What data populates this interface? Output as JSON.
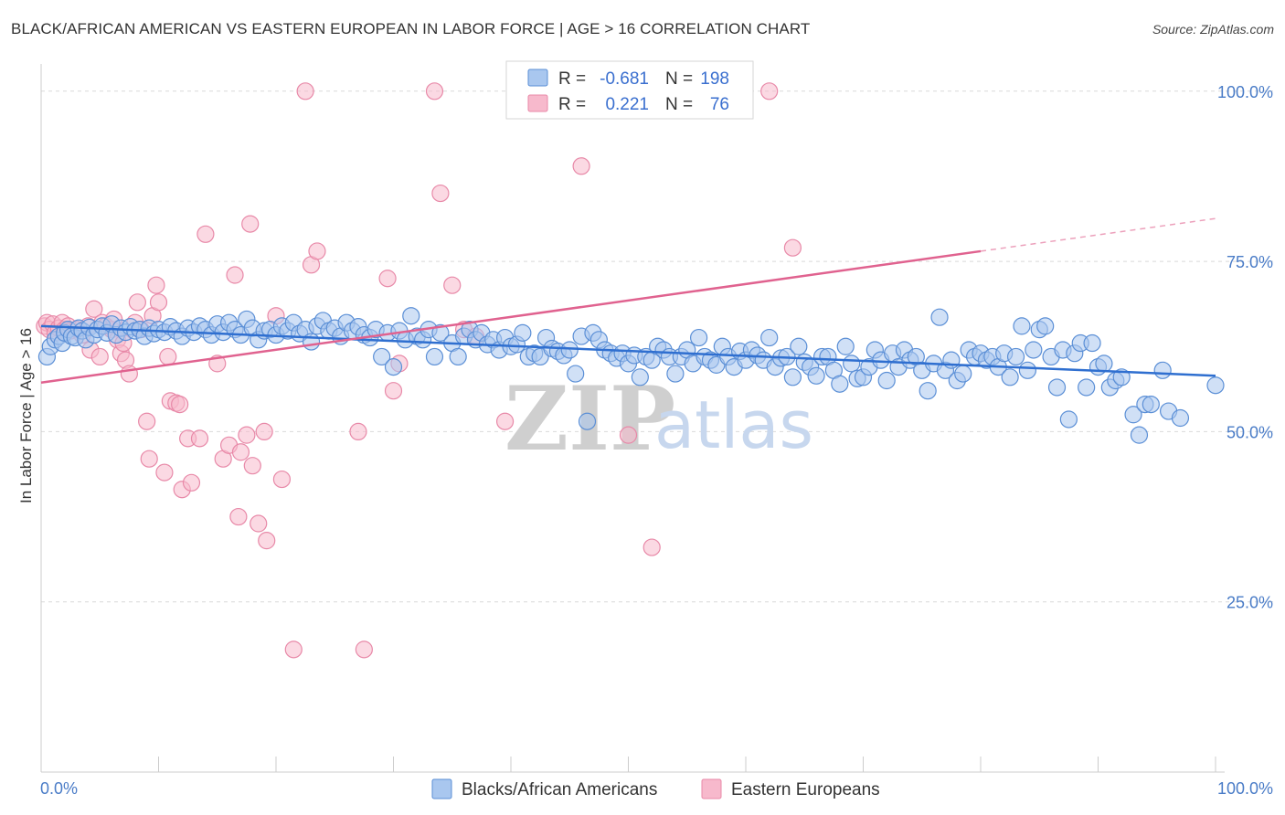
{
  "title": "BLACK/AFRICAN AMERICAN VS EASTERN EUROPEAN IN LABOR FORCE | AGE > 16 CORRELATION CHART",
  "source": "Source: ZipAtlas.com",
  "watermark": {
    "zip": "ZIP",
    "atlas": "atlas"
  },
  "colors": {
    "blue_fill": "#a9c7ef",
    "blue_stroke": "#5b8fd6",
    "blue_line": "#2f6fd0",
    "pink_fill": "#f7b9cc",
    "pink_stroke": "#e889a8",
    "pink_line": "#e0628f",
    "grid": "#d9d9d9",
    "tick_text": "#4a7cc7"
  },
  "legend": {
    "r_label": "R =",
    "n_label": "N =",
    "blue": {
      "r": "-0.681",
      "n": "198"
    },
    "pink": {
      "r": "0.221",
      "n": "76"
    }
  },
  "bottom_legend": {
    "blue": "Blacks/African Americans",
    "pink": "Eastern Europeans"
  },
  "chart_data": {
    "type": "scatter",
    "xlabel": "",
    "ylabel": "In Labor Force | Age > 16",
    "xlim": [
      0,
      100
    ],
    "ylim": [
      0,
      104
    ],
    "x_tick_labels": [
      "0.0%",
      "100.0%"
    ],
    "y_ticks": [
      25,
      50,
      75,
      100
    ],
    "y_tick_labels": [
      "25.0%",
      "50.0%",
      "75.0%",
      "100.0%"
    ],
    "series": [
      {
        "name": "Blacks/African Americans",
        "r": -0.681,
        "n": 198,
        "trend": {
          "x": [
            0,
            100
          ],
          "y": [
            65.5,
            58.2
          ]
        },
        "points": [
          [
            0.5,
            61
          ],
          [
            0.8,
            62.5
          ],
          [
            1.2,
            63.5
          ],
          [
            1.5,
            64
          ],
          [
            1.8,
            63
          ],
          [
            2.0,
            64.5
          ],
          [
            2.3,
            65
          ],
          [
            2.6,
            64
          ],
          [
            2.9,
            63.8
          ],
          [
            3.2,
            65.2
          ],
          [
            3.5,
            64.8
          ],
          [
            3.8,
            63.5
          ],
          [
            4.1,
            65.3
          ],
          [
            4.5,
            64.2
          ],
          [
            4.8,
            65
          ],
          [
            5.2,
            65.5
          ],
          [
            5.6,
            64.5
          ],
          [
            6.0,
            65.8
          ],
          [
            6.4,
            64.2
          ],
          [
            6.8,
            65.2
          ],
          [
            7.2,
            64.6
          ],
          [
            7.6,
            65.4
          ],
          [
            8.0,
            64.8
          ],
          [
            8.4,
            65
          ],
          [
            8.8,
            64
          ],
          [
            9.2,
            65.2
          ],
          [
            9.6,
            64.4
          ],
          [
            10.0,
            65
          ],
          [
            10.5,
            64.6
          ],
          [
            11.0,
            65.4
          ],
          [
            11.5,
            64.8
          ],
          [
            12.0,
            64
          ],
          [
            12.5,
            65.2
          ],
          [
            13.0,
            64.6
          ],
          [
            13.5,
            65.5
          ],
          [
            14.0,
            65
          ],
          [
            14.5,
            64.2
          ],
          [
            15.0,
            65.8
          ],
          [
            15.5,
            64.6
          ],
          [
            16.0,
            66
          ],
          [
            16.5,
            65
          ],
          [
            17.0,
            64.2
          ],
          [
            17.5,
            66.5
          ],
          [
            18.0,
            65.2
          ],
          [
            18.5,
            63.5
          ],
          [
            19.0,
            64.8
          ],
          [
            19.5,
            65
          ],
          [
            20.0,
            64.2
          ],
          [
            20.5,
            65.5
          ],
          [
            21.0,
            64.8
          ],
          [
            21.5,
            66
          ],
          [
            22.0,
            64.4
          ],
          [
            22.5,
            65
          ],
          [
            23.0,
            63.2
          ],
          [
            23.5,
            65.5
          ],
          [
            24.0,
            66.3
          ],
          [
            24.5,
            64.8
          ],
          [
            25.0,
            65.2
          ],
          [
            25.5,
            64
          ],
          [
            26.0,
            66
          ],
          [
            26.5,
            64.8
          ],
          [
            27.0,
            65.4
          ],
          [
            27.5,
            64.2
          ],
          [
            28.0,
            63.8
          ],
          [
            28.5,
            65
          ],
          [
            29.0,
            61
          ],
          [
            29.5,
            64.5
          ],
          [
            30.0,
            59.5
          ],
          [
            30.5,
            64.8
          ],
          [
            31.0,
            63.5
          ],
          [
            31.5,
            67
          ],
          [
            32.0,
            64
          ],
          [
            32.5,
            63.5
          ],
          [
            33.0,
            65
          ],
          [
            33.5,
            61
          ],
          [
            34.0,
            64.5
          ],
          [
            35.0,
            63
          ],
          [
            35.5,
            61
          ],
          [
            36.0,
            64
          ],
          [
            36.5,
            65
          ],
          [
            37.0,
            63.5
          ],
          [
            37.5,
            64.5
          ],
          [
            38.0,
            62.8
          ],
          [
            38.5,
            63.5
          ],
          [
            39.0,
            62
          ],
          [
            39.5,
            63.8
          ],
          [
            40.0,
            62.5
          ],
          [
            40.5,
            62.8
          ],
          [
            41.0,
            64.5
          ],
          [
            41.5,
            61
          ],
          [
            42.0,
            61.5
          ],
          [
            42.5,
            61
          ],
          [
            43.0,
            63.8
          ],
          [
            43.5,
            62.2
          ],
          [
            44.0,
            61.8
          ],
          [
            44.5,
            61.2
          ],
          [
            45.0,
            62
          ],
          [
            45.5,
            58.5
          ],
          [
            46.0,
            64
          ],
          [
            46.5,
            51.5
          ],
          [
            47.0,
            64.5
          ],
          [
            47.5,
            63.5
          ],
          [
            48.0,
            62
          ],
          [
            48.5,
            61.5
          ],
          [
            49.0,
            60.8
          ],
          [
            49.5,
            61.5
          ],
          [
            50.0,
            60
          ],
          [
            50.5,
            61.2
          ],
          [
            51.0,
            58
          ],
          [
            51.5,
            61
          ],
          [
            52.0,
            60.5
          ],
          [
            52.5,
            62.5
          ],
          [
            53.0,
            62
          ],
          [
            53.5,
            61
          ],
          [
            54.0,
            58.5
          ],
          [
            54.5,
            61
          ],
          [
            55.0,
            62
          ],
          [
            55.5,
            60
          ],
          [
            56.0,
            63.8
          ],
          [
            56.5,
            61
          ],
          [
            57.0,
            60.5
          ],
          [
            57.5,
            59.8
          ],
          [
            58.0,
            62.5
          ],
          [
            58.5,
            61
          ],
          [
            59.0,
            59.5
          ],
          [
            59.5,
            61.8
          ],
          [
            60.0,
            60.5
          ],
          [
            60.5,
            62
          ],
          [
            61.0,
            61.2
          ],
          [
            61.5,
            60.5
          ],
          [
            62.0,
            63.8
          ],
          [
            62.5,
            59.5
          ],
          [
            63.0,
            60.8
          ],
          [
            63.5,
            61
          ],
          [
            64.0,
            58
          ],
          [
            64.5,
            62.5
          ],
          [
            65.0,
            60.2
          ],
          [
            65.5,
            59.5
          ],
          [
            66.0,
            58.2
          ],
          [
            66.5,
            61
          ],
          [
            67.0,
            61
          ],
          [
            67.5,
            59
          ],
          [
            68.0,
            57
          ],
          [
            68.5,
            62.5
          ],
          [
            69.0,
            60
          ],
          [
            69.5,
            57.8
          ],
          [
            70.0,
            58
          ],
          [
            70.5,
            59.5
          ],
          [
            71.0,
            62
          ],
          [
            71.5,
            60.5
          ],
          [
            72.0,
            57.5
          ],
          [
            72.5,
            61.5
          ],
          [
            73.0,
            59.5
          ],
          [
            73.5,
            62
          ],
          [
            74.0,
            60.5
          ],
          [
            74.5,
            61
          ],
          [
            75.0,
            59
          ],
          [
            75.5,
            56
          ],
          [
            76.0,
            60
          ],
          [
            76.5,
            66.8
          ],
          [
            77.0,
            59
          ],
          [
            77.5,
            60.5
          ],
          [
            78.0,
            57.5
          ],
          [
            78.5,
            58.5
          ],
          [
            79.0,
            62
          ],
          [
            79.5,
            61
          ],
          [
            80.0,
            61.5
          ],
          [
            80.5,
            60.5
          ],
          [
            81.0,
            61
          ],
          [
            81.5,
            59.5
          ],
          [
            82.0,
            61.5
          ],
          [
            82.5,
            58
          ],
          [
            83.0,
            61
          ],
          [
            83.5,
            65.5
          ],
          [
            84.0,
            59
          ],
          [
            84.5,
            62
          ],
          [
            85.0,
            65
          ],
          [
            85.5,
            65.5
          ],
          [
            86.0,
            61
          ],
          [
            86.5,
            56.5
          ],
          [
            87.0,
            62
          ],
          [
            87.5,
            51.8
          ],
          [
            88.0,
            61.5
          ],
          [
            88.5,
            63
          ],
          [
            89.0,
            56.5
          ],
          [
            89.5,
            63
          ],
          [
            90.0,
            59.5
          ],
          [
            90.5,
            60
          ],
          [
            91.0,
            56.5
          ],
          [
            91.5,
            57.5
          ],
          [
            92.0,
            58
          ],
          [
            93.0,
            52.5
          ],
          [
            93.5,
            49.5
          ],
          [
            94.0,
            54
          ],
          [
            94.5,
            54
          ],
          [
            95.5,
            59
          ],
          [
            96.0,
            53
          ],
          [
            97.0,
            52
          ],
          [
            100.0,
            56.8
          ]
        ]
      },
      {
        "name": "Eastern Europeans",
        "r": 0.221,
        "n": 76,
        "trend": {
          "x": [
            0,
            80
          ],
          "y": [
            57.2,
            76.5
          ]
        },
        "trend_dashed": {
          "x": [
            80,
            100
          ],
          "y": [
            76.5,
            81.3
          ]
        },
        "points": [
          [
            0.3,
            65.5
          ],
          [
            0.5,
            66
          ],
          [
            0.7,
            65
          ],
          [
            1.0,
            65.8
          ],
          [
            1.2,
            64.5
          ],
          [
            1.5,
            65.2
          ],
          [
            1.8,
            66
          ],
          [
            2.0,
            65
          ],
          [
            2.3,
            65.5
          ],
          [
            2.5,
            64.8
          ],
          [
            3.0,
            65
          ],
          [
            3.5,
            64.2
          ],
          [
            4.0,
            65.5
          ],
          [
            4.2,
            62
          ],
          [
            4.5,
            68
          ],
          [
            5.0,
            61
          ],
          [
            5.2,
            66
          ],
          [
            5.5,
            65.5
          ],
          [
            6.0,
            65
          ],
          [
            6.2,
            66.5
          ],
          [
            6.5,
            63.5
          ],
          [
            6.8,
            61.5
          ],
          [
            7.0,
            63
          ],
          [
            7.2,
            60.5
          ],
          [
            7.5,
            58.5
          ],
          [
            8.0,
            66
          ],
          [
            8.2,
            69
          ],
          [
            8.5,
            65
          ],
          [
            9.0,
            51.5
          ],
          [
            9.2,
            46
          ],
          [
            9.5,
            67
          ],
          [
            9.8,
            71.5
          ],
          [
            10.0,
            69
          ],
          [
            10.5,
            44
          ],
          [
            10.8,
            61
          ],
          [
            11.0,
            54.5
          ],
          [
            11.5,
            54.2
          ],
          [
            11.8,
            54
          ],
          [
            12.0,
            41.5
          ],
          [
            12.5,
            49
          ],
          [
            12.8,
            42.5
          ],
          [
            13.5,
            49
          ],
          [
            14.0,
            79
          ],
          [
            15.0,
            60
          ],
          [
            15.5,
            46
          ],
          [
            16.0,
            48
          ],
          [
            16.5,
            73
          ],
          [
            16.8,
            37.5
          ],
          [
            17.0,
            47
          ],
          [
            17.5,
            49.5
          ],
          [
            17.8,
            80.5
          ],
          [
            18.0,
            45
          ],
          [
            18.5,
            36.5
          ],
          [
            19.0,
            50
          ],
          [
            19.2,
            34
          ],
          [
            20.0,
            67
          ],
          [
            20.5,
            43
          ],
          [
            21.5,
            18
          ],
          [
            22.5,
            100
          ],
          [
            23.0,
            74.5
          ],
          [
            23.5,
            76.5
          ],
          [
            27.0,
            50
          ],
          [
            27.5,
            18
          ],
          [
            29.5,
            72.5
          ],
          [
            30.0,
            56
          ],
          [
            30.5,
            60
          ],
          [
            33.5,
            100
          ],
          [
            34.0,
            85
          ],
          [
            35.0,
            71.5
          ],
          [
            36.0,
            65
          ],
          [
            37.0,
            64
          ],
          [
            39.5,
            51.5
          ],
          [
            46.0,
            89
          ],
          [
            50.0,
            49.5
          ],
          [
            52.0,
            33
          ],
          [
            62.0,
            100
          ],
          [
            64.0,
            77
          ]
        ]
      }
    ]
  }
}
